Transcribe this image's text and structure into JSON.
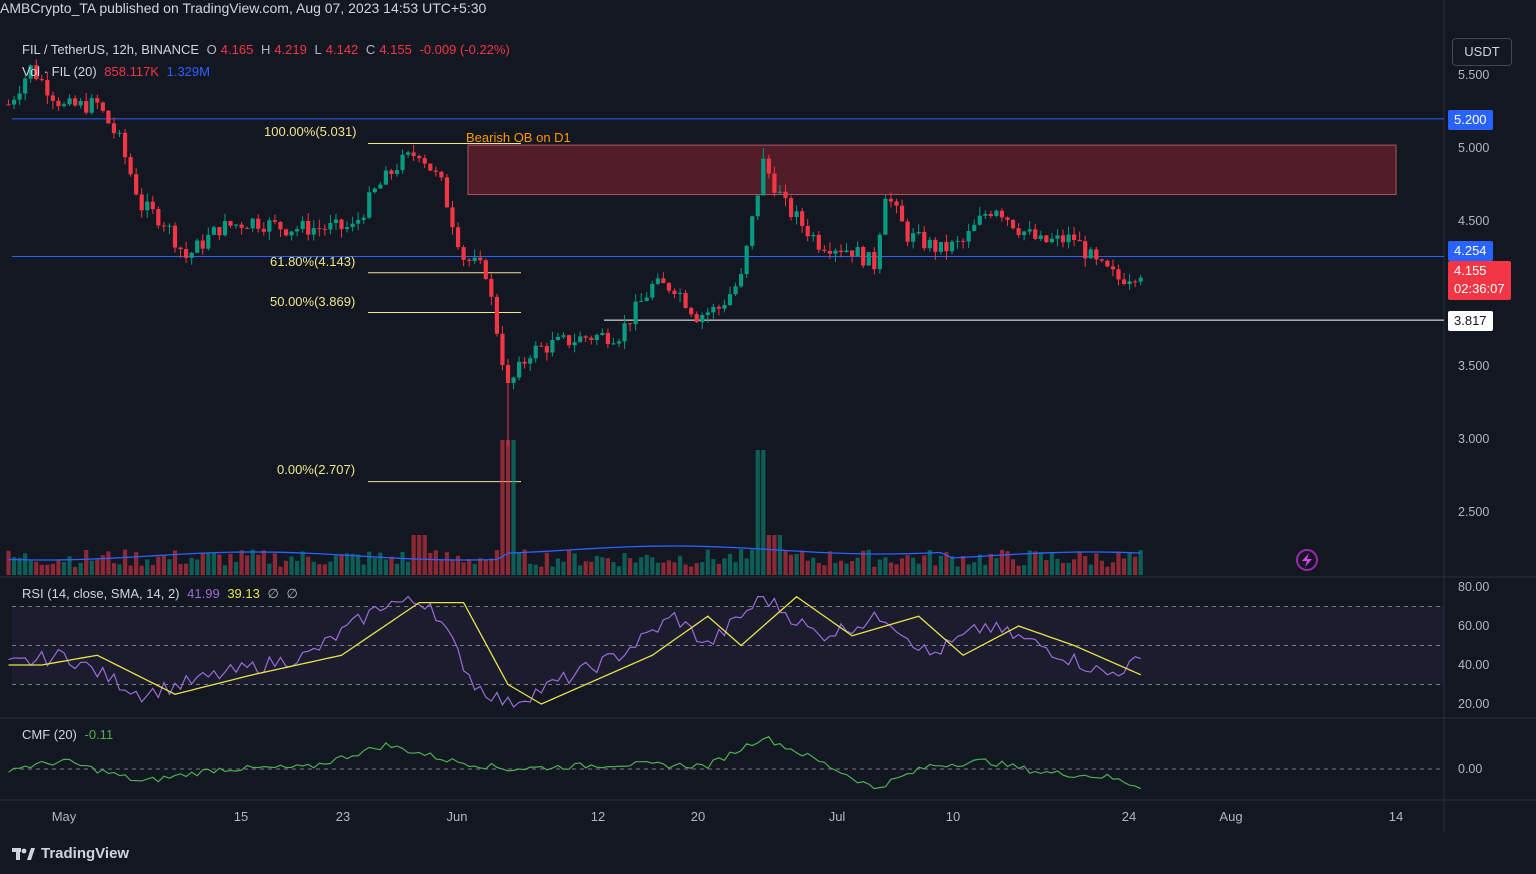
{
  "publish_line": "AMBCrypto_TA published on TradingView.com, Aug 07, 2023 14:53 UTC+5:30",
  "legend": {
    "symbol": "FIL / TetherUS, 12h, BINANCE",
    "o_label": "O",
    "o": "4.165",
    "h_label": "H",
    "h": "4.219",
    "l_label": "L",
    "l": "4.142",
    "c_label": "C",
    "c": "4.155",
    "change": "-0.009 (-0.22%)",
    "vol_label": "Vol · FIL (20)",
    "vol_value": "858.117K",
    "vol_ma": "1.329M",
    "rsi_label": "RSI (14, close, SMA, 14, 2)",
    "rsi_value": "41.99",
    "rsi_ma": "39.13",
    "rsi_extra1": "∅",
    "rsi_extra2": "∅",
    "cmf_label": "CMF (20)",
    "cmf_value": "-0.11"
  },
  "currency": "USDT",
  "price_axis": [
    "5.500",
    "5.000",
    "4.500",
    "3.500",
    "3.000",
    "2.500"
  ],
  "rsi_axis": [
    "80.00",
    "60.00",
    "40.00",
    "20.00"
  ],
  "cmf_axis": [
    "0.00"
  ],
  "price_labels": {
    "resistance": "5.200",
    "mid_level": "4.254",
    "last_price": "4.155",
    "countdown": "02:36:07",
    "support": "3.817"
  },
  "annotation": "Bearish OB on D1",
  "fib_levels": [
    {
      "label": "100.00%(5.031)",
      "price": 5.031
    },
    {
      "label": "61.80%(4.143)",
      "price": 4.143
    },
    {
      "label": "50.00%(3.869)",
      "price": 3.869
    },
    {
      "label": "0.00%(2.707)",
      "price": 2.707
    }
  ],
  "date_axis": [
    "May",
    "15",
    "23",
    "Jun",
    "12",
    "20",
    "Jul",
    "10",
    "24",
    "Aug",
    "14"
  ],
  "brand": "TradingView",
  "colors": {
    "background": "#131722",
    "up": "#089981",
    "down": "#f23645",
    "blue_line": "#2962ff",
    "ob_zone": "#5d1e2a",
    "fib": "#efe58a",
    "rsi": "#9c6bd8",
    "rsi_ma": "#e8e24a",
    "cmf": "#4caf50"
  },
  "chart_data": {
    "type": "candlestick",
    "title": "FIL / TetherUS, 12h, BINANCE",
    "ylim": [
      2.25,
      5.6
    ],
    "horizontal_levels": [
      5.2,
      4.254,
      3.817
    ],
    "order_block": {
      "label": "Bearish OB on D1",
      "top": 5.02,
      "bottom": 4.68
    },
    "close_anchors": [
      {
        "date": "Apr 26",
        "close": 5.3
      },
      {
        "date": "Apr 28",
        "close": 5.55
      },
      {
        "date": "May 1",
        "close": 5.28
      },
      {
        "date": "May 4",
        "close": 5.3
      },
      {
        "date": "May 6",
        "close": 5.05
      },
      {
        "date": "May 8",
        "close": 4.6
      },
      {
        "date": "May 10",
        "close": 4.5
      },
      {
        "date": "May 12",
        "close": 4.25
      },
      {
        "date": "May 15",
        "close": 4.45
      },
      {
        "date": "May 18",
        "close": 4.5
      },
      {
        "date": "May 21",
        "close": 4.45
      },
      {
        "date": "May 24",
        "close": 4.45
      },
      {
        "date": "May 27",
        "close": 4.45
      },
      {
        "date": "May 29",
        "close": 4.7
      },
      {
        "date": "May 31",
        "close": 4.88
      },
      {
        "date": "Jun 2",
        "close": 4.98
      },
      {
        "date": "Jun 4",
        "close": 4.75
      },
      {
        "date": "Jun 6",
        "close": 4.25
      },
      {
        "date": "Jun 8",
        "close": 4.15
      },
      {
        "date": "Jun 10",
        "close": 3.35
      },
      {
        "date": "Jun 12",
        "close": 3.6
      },
      {
        "date": "Jun 14",
        "close": 3.65
      },
      {
        "date": "Jun 17",
        "close": 3.7
      },
      {
        "date": "Jun 20",
        "close": 3.72
      },
      {
        "date": "Jun 23",
        "close": 4.05
      },
      {
        "date": "Jun 25",
        "close": 4.05
      },
      {
        "date": "Jun 27",
        "close": 3.85
      },
      {
        "date": "Jun 29",
        "close": 3.9
      },
      {
        "date": "Jul 1",
        "close": 4.1
      },
      {
        "date": "Jul 3",
        "close": 4.9
      },
      {
        "date": "Jul 5",
        "close": 4.6
      },
      {
        "date": "Jul 8",
        "close": 4.35
      },
      {
        "date": "Jul 11",
        "close": 4.3
      },
      {
        "date": "Jul 13",
        "close": 4.2
      },
      {
        "date": "Jul 14",
        "close": 4.7
      },
      {
        "date": "Jul 16",
        "close": 4.4
      },
      {
        "date": "Jul 19",
        "close": 4.3
      },
      {
        "date": "Jul 21",
        "close": 4.35
      },
      {
        "date": "Jul 23",
        "close": 4.55
      },
      {
        "date": "Jul 24",
        "close": 4.6
      },
      {
        "date": "Jul 26",
        "close": 4.45
      },
      {
        "date": "Jul 28",
        "close": 4.35
      },
      {
        "date": "Jul 31",
        "close": 4.38
      },
      {
        "date": "Aug 2",
        "close": 4.2
      },
      {
        "date": "Aug 4",
        "close": 4.1
      },
      {
        "date": "Aug 6",
        "close": 4.155
      }
    ],
    "rsi": {
      "ylim": [
        15,
        85
      ],
      "upper": 70,
      "mid": 50,
      "lower": 30,
      "anchors": [
        {
          "date": "Apr 26",
          "value": 40
        },
        {
          "date": "May 1",
          "value": 45
        },
        {
          "date": "May 8",
          "value": 25
        },
        {
          "date": "May 15",
          "value": 35
        },
        {
          "date": "May 23",
          "value": 45
        },
        {
          "date": "May 30",
          "value": 72
        },
        {
          "date": "Jun 3",
          "value": 72
        },
        {
          "date": "Jun 7",
          "value": 30
        },
        {
          "date": "Jun 10",
          "value": 20
        },
        {
          "date": "Jun 14",
          "value": 30
        },
        {
          "date": "Jun 20",
          "value": 45
        },
        {
          "date": "Jun 25",
          "value": 65
        },
        {
          "date": "Jun 28",
          "value": 50
        },
        {
          "date": "Jul 3",
          "value": 75
        },
        {
          "date": "Jul 8",
          "value": 55
        },
        {
          "date": "Jul 14",
          "value": 65
        },
        {
          "date": "Jul 18",
          "value": 45
        },
        {
          "date": "Jul 23",
          "value": 60
        },
        {
          "date": "Jul 28",
          "value": 50
        },
        {
          "date": "Aug 3",
          "value": 35
        },
        {
          "date": "Aug 6",
          "value": 41.99
        }
      ]
    },
    "cmf": {
      "ylim": [
        -0.3,
        0.3
      ],
      "anchors": [
        {
          "date": "Apr 26",
          "value": 0
        },
        {
          "date": "May 1",
          "value": 0.05
        },
        {
          "date": "May 8",
          "value": -0.08
        },
        {
          "date": "May 15",
          "value": 0
        },
        {
          "date": "May 23",
          "value": 0.01
        },
        {
          "date": "May 30",
          "value": 0.15
        },
        {
          "date": "Jun 5",
          "value": 0.05
        },
        {
          "date": "Jun 10",
          "value": 0
        },
        {
          "date": "Jun 20",
          "value": 0.03
        },
        {
          "date": "Jun 28",
          "value": 0.02
        },
        {
          "date": "Jul 3",
          "value": 0.2
        },
        {
          "date": "Jul 8",
          "value": 0.05
        },
        {
          "date": "Jul 13",
          "value": -0.12
        },
        {
          "date": "Jul 18",
          "value": 0.02
        },
        {
          "date": "Jul 23",
          "value": 0.05
        },
        {
          "date": "Jul 28",
          "value": -0.02
        },
        {
          "date": "Aug 3",
          "value": -0.05
        },
        {
          "date": "Aug 6",
          "value": -0.11
        }
      ]
    }
  }
}
